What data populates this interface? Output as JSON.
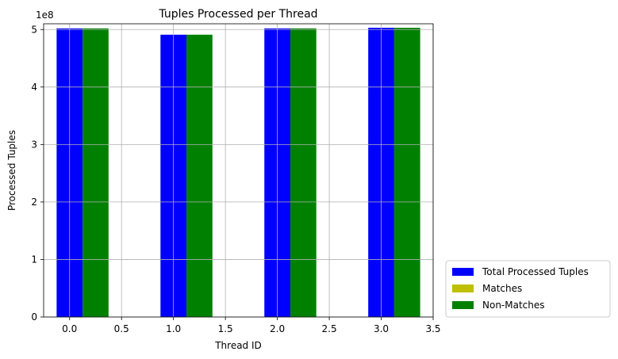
{
  "chart_data": {
    "type": "bar",
    "title": "Tuples Processed per Thread",
    "xlabel": "Thread ID",
    "ylabel": "Processed Tuples",
    "y_offset_label": "1e8",
    "x": [
      0,
      1,
      2,
      3
    ],
    "xlim": [
      -0.25,
      3.5
    ],
    "ylim": [
      0,
      5.1
    ],
    "x_ticks": [
      0.0,
      0.5,
      1.0,
      1.5,
      2.0,
      2.5,
      3.0,
      3.5
    ],
    "x_tick_labels": [
      "0.0",
      "0.5",
      "1.0",
      "1.5",
      "2.0",
      "2.5",
      "3.0",
      "3.5"
    ],
    "y_ticks": [
      0,
      1,
      2,
      3,
      4,
      5
    ],
    "y_tick_labels": [
      "0",
      "1",
      "2",
      "3",
      "4",
      "5"
    ],
    "bar_width": 0.25,
    "grid": true,
    "legend_position": "outside-bottom-right",
    "series": [
      {
        "name": "Total Processed Tuples",
        "color": "#0000ff",
        "offset": 0.0,
        "values": [
          5.02,
          4.91,
          5.02,
          5.03
        ]
      },
      {
        "name": "Matches",
        "color": "#bfbf00",
        "offset": 0.25,
        "values": [
          0,
          0,
          0,
          0
        ]
      },
      {
        "name": "Non-Matches",
        "color": "#008000",
        "offset": 0.25,
        "values": [
          5.02,
          4.91,
          5.02,
          5.03
        ]
      }
    ]
  }
}
